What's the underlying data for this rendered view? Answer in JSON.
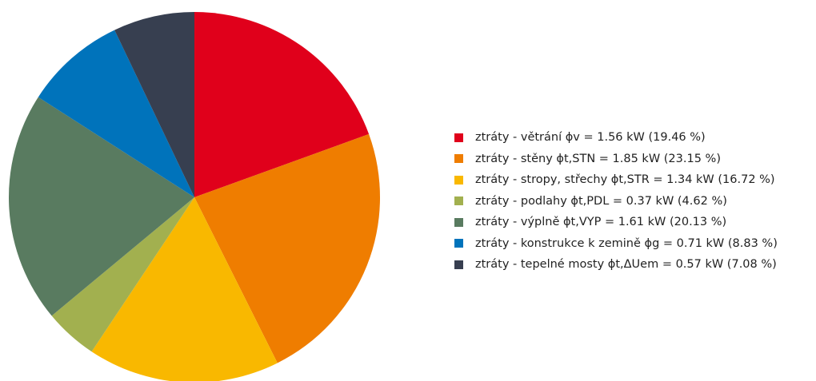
{
  "chart_data": {
    "type": "pie",
    "title": "",
    "start_angle_deg": 0,
    "direction": "clockwise",
    "legend_position": "right",
    "slices": [
      {
        "label": "ztráty - větrání ϕv = 1.56 kW (19.46 %)",
        "value": 1.56,
        "percent": 19.46,
        "color": "#e0001b"
      },
      {
        "label": "ztráty - stěny ϕt,STN = 1.85 kW (23.15 %)",
        "value": 1.85,
        "percent": 23.15,
        "color": "#ef7d00"
      },
      {
        "label": "ztráty - stropy, střechy ϕt,STR = 1.34 kW (16.72 %)",
        "value": 1.34,
        "percent": 16.72,
        "color": "#f9b800"
      },
      {
        "label": "ztráty - podlahy ϕt,PDL = 0.37 kW (4.62 %)",
        "value": 0.37,
        "percent": 4.62,
        "color": "#a2b04f"
      },
      {
        "label": "ztráty - výplně ϕt,VYP = 1.61 kW (20.13 %)",
        "value": 1.61,
        "percent": 20.13,
        "color": "#597b60"
      },
      {
        "label": "ztráty - konstrukce k zemině ϕg = 0.71 kW (8.83 %)",
        "value": 0.71,
        "percent": 8.83,
        "color": "#0073bb"
      },
      {
        "label": "ztráty - tepelné mosty ϕt,ΔUem = 0.57 kW (7.08 %)",
        "value": 0.57,
        "percent": 7.08,
        "color": "#373f50"
      }
    ]
  }
}
